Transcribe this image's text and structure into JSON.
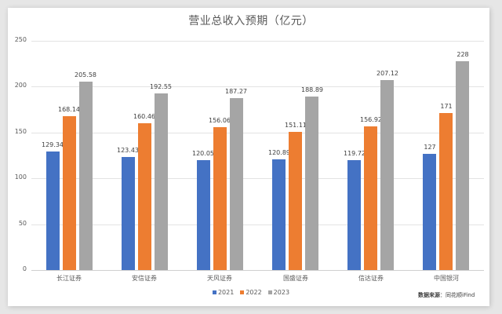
{
  "chart_data": {
    "type": "bar",
    "title": "营业总收入预期（亿元）",
    "xlabel": "",
    "ylabel": "",
    "ylim": [
      0,
      250
    ],
    "yticks": [
      0,
      50,
      100,
      150,
      200,
      250
    ],
    "grid": true,
    "legend_position": "bottom",
    "categories": [
      "长江证券",
      "安信证券",
      "天风证券",
      "国盛证券",
      "信达证券",
      "中国银河"
    ],
    "series": [
      {
        "name": "2021",
        "color": "#4472C4",
        "values": [
          129.34,
          123.43,
          120.05,
          120.89,
          119.72,
          127
        ]
      },
      {
        "name": "2022",
        "color": "#ED7D31",
        "values": [
          168.14,
          160.46,
          156.06,
          151.11,
          156.92,
          171
        ]
      },
      {
        "name": "2023",
        "color": "#A5A5A5",
        "values": [
          205.58,
          192.55,
          187.27,
          188.89,
          207.12,
          228
        ]
      }
    ],
    "data_labels": [
      [
        "129.34",
        "123.43",
        "120.05",
        "120.89",
        "119.72",
        "127"
      ],
      [
        "168.14",
        "160.46",
        "156.06",
        "151.11",
        "156.92",
        "171"
      ],
      [
        "205.58",
        "192.55",
        "187.27",
        "188.89",
        "207.12",
        "228"
      ]
    ],
    "annotations": [
      "数据来源：同花顺iFind"
    ]
  },
  "source": {
    "label": "数据来源",
    "separator": "：",
    "value": "同花顺iFind"
  }
}
